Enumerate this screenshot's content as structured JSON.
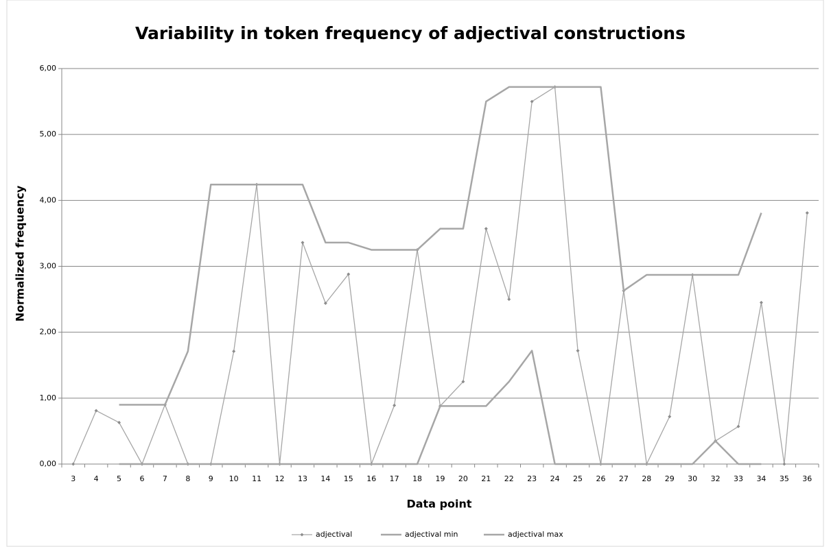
{
  "chart_data": {
    "type": "line",
    "title": "Variability in token frequency of adjectival constructions",
    "x_label": "Data point",
    "y_label": "Normalized frequency",
    "categories": [
      "3",
      "4",
      "5",
      "6",
      "7",
      "8",
      "9",
      "10",
      "11",
      "12",
      "13",
      "14",
      "15",
      "16",
      "17",
      "18",
      "19",
      "20",
      "21",
      "22",
      "23",
      "24",
      "25",
      "26",
      "27",
      "28",
      "29",
      "30",
      "32",
      "33",
      "34",
      "35",
      "36"
    ],
    "series": [
      {
        "name": "adjectival",
        "color": "#a6a6a6",
        "markers": true,
        "values": [
          0,
          0.81,
          0.63,
          0,
          0.9,
          0,
          0,
          1.71,
          4.24,
          0,
          3.36,
          2.44,
          2.88,
          0,
          0.89,
          3.25,
          0.88,
          1.25,
          3.57,
          2.5,
          5.5,
          5.72,
          1.72,
          0,
          2.63,
          0,
          0.72,
          2.87,
          0.35,
          0.57,
          2.45,
          0,
          3.81
        ]
      },
      {
        "name": "adjectival min",
        "color": "#a6a6a6",
        "markers": false,
        "values": [
          null,
          null,
          0,
          0,
          0,
          0,
          0,
          0,
          0,
          0,
          0,
          0,
          0,
          0,
          0,
          0,
          0.88,
          0.88,
          0.88,
          1.25,
          1.72,
          0,
          0,
          0,
          0,
          0,
          0,
          0,
          0.35,
          0,
          0,
          null,
          null
        ]
      },
      {
        "name": "adjectival max",
        "color": "#a6a6a6",
        "markers": false,
        "values": [
          null,
          null,
          0.9,
          0.9,
          0.9,
          1.71,
          4.24,
          4.24,
          4.24,
          4.24,
          4.24,
          3.36,
          3.36,
          3.25,
          3.25,
          3.25,
          3.57,
          3.57,
          5.5,
          5.72,
          5.72,
          5.72,
          5.72,
          5.72,
          2.63,
          2.87,
          2.87,
          2.87,
          2.87,
          2.87,
          3.81,
          null,
          null
        ]
      }
    ],
    "ylim": [
      0,
      6
    ],
    "yticks": [
      {
        "value": 0,
        "label": "0,00"
      },
      {
        "value": 1,
        "label": "1,00"
      },
      {
        "value": 2,
        "label": "2,00"
      },
      {
        "value": 3,
        "label": "3,00"
      },
      {
        "value": 4,
        "label": "4,00"
      },
      {
        "value": 5,
        "label": "5,00"
      },
      {
        "value": 6,
        "label": "6,00"
      }
    ],
    "grid": true,
    "legend": "bottom"
  }
}
